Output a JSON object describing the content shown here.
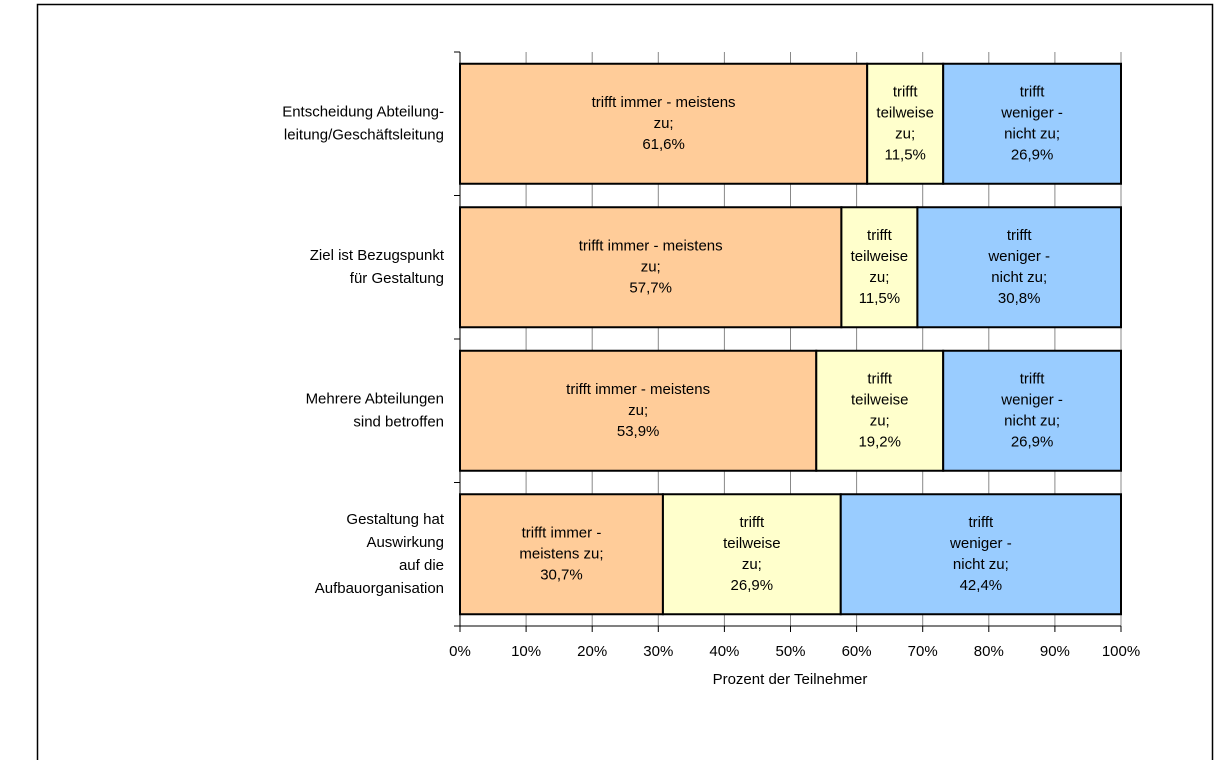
{
  "chart_data": {
    "type": "stacked-barh",
    "x_label": "Prozent der Teilnehmer",
    "categories": [
      [
        "Entscheidung Abteilung-",
        "leitung/Geschäftsleitung"
      ],
      [
        "Ziel ist Bezugspunkt",
        "für Gestaltung"
      ],
      [
        "Mehrere Abteilungen",
        "sind betroffen"
      ],
      [
        "Gestaltung hat",
        "Auswirkung",
        "auf die",
        "Aufbauorganisation"
      ]
    ],
    "series": [
      {
        "color": "#ffcc99",
        "values": [
          61.6,
          57.7,
          53.9,
          30.7
        ],
        "value_labels": [
          "61,6%",
          "57,7%",
          "53,9%",
          "30,7%"
        ],
        "label_lines": [
          [
            "trifft immer - meistens",
            "zu;"
          ],
          [
            "trifft immer - meistens",
            "zu;"
          ],
          [
            "trifft immer - meistens",
            "zu;"
          ],
          [
            "trifft immer -",
            "meistens zu;"
          ]
        ]
      },
      {
        "color": "#ffffcc",
        "values": [
          11.5,
          11.5,
          19.2,
          26.9
        ],
        "value_labels": [
          "11,5%",
          "11,5%",
          "19,2%",
          "26,9%"
        ],
        "label_lines": [
          [
            "trifft",
            "teilweise",
            "zu;"
          ],
          [
            "trifft",
            "teilweise",
            "zu;"
          ],
          [
            "trifft",
            "teilweise",
            "zu;"
          ],
          [
            "trifft",
            "teilweise",
            "zu;"
          ]
        ]
      },
      {
        "color": "#99ccff",
        "values": [
          26.9,
          30.8,
          26.9,
          42.4
        ],
        "value_labels": [
          "26,9%",
          "30,8%",
          "26,9%",
          "42,4%"
        ],
        "label_lines": [
          [
            "trifft",
            "weniger -",
            "nicht zu;"
          ],
          [
            "trifft",
            "weniger -",
            "nicht zu;"
          ],
          [
            "trifft",
            "weniger -",
            "nicht zu;"
          ],
          [
            "trifft",
            "weniger -",
            "nicht zu;"
          ]
        ]
      }
    ],
    "xlim": [
      0,
      100
    ],
    "xticks": [
      {
        "value": 0,
        "label": "0%"
      },
      {
        "value": 10,
        "label": "10%"
      },
      {
        "value": 20,
        "label": "20%"
      },
      {
        "value": 30,
        "label": "30%"
      },
      {
        "value": 40,
        "label": "40%"
      },
      {
        "value": 50,
        "label": "50%"
      },
      {
        "value": 60,
        "label": "60%"
      },
      {
        "value": 70,
        "label": "70%"
      },
      {
        "value": 80,
        "label": "80%"
      },
      {
        "value": 90,
        "label": "90%"
      },
      {
        "value": 100,
        "label": "100%"
      }
    ],
    "grid": true
  }
}
